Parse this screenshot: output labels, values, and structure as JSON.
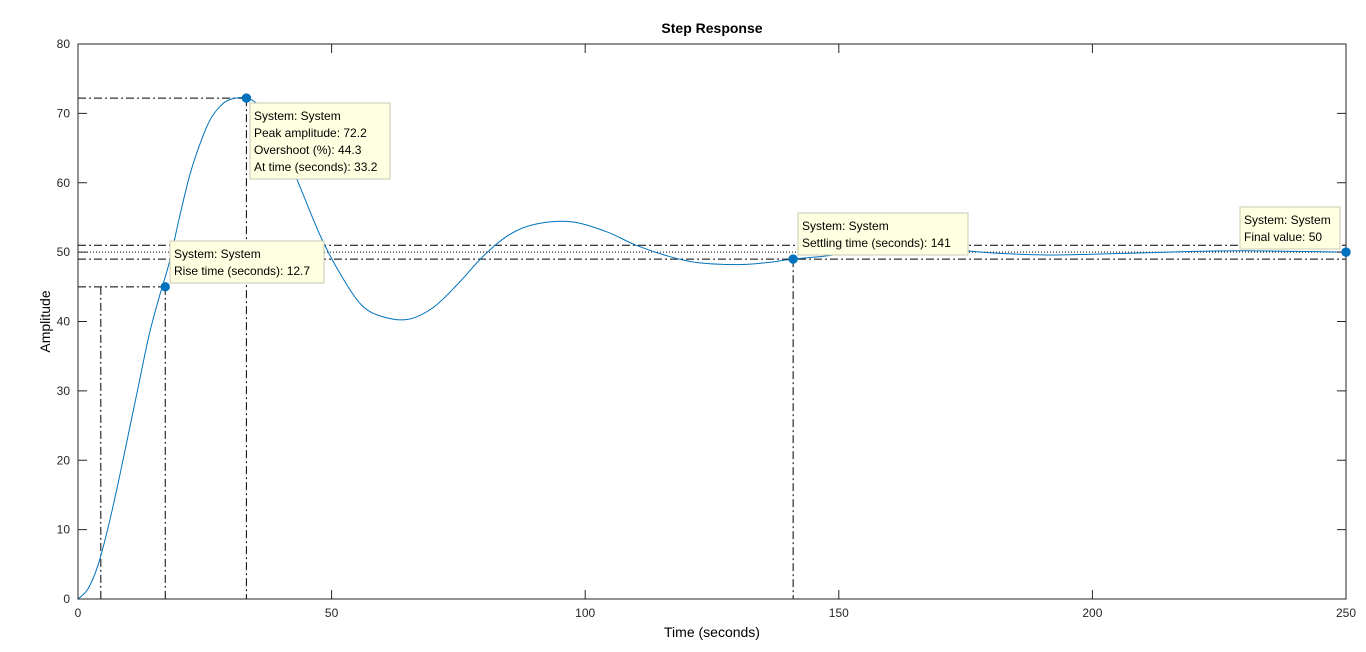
{
  "chart_data": {
    "type": "line",
    "title": "Step Response",
    "xlabel": "Time (seconds)",
    "ylabel": "Amplitude",
    "xlim": [
      0,
      250
    ],
    "ylim": [
      0,
      80
    ],
    "xticks": [
      0,
      50,
      100,
      150,
      200,
      250
    ],
    "yticks": [
      0,
      10,
      20,
      30,
      40,
      50,
      60,
      70,
      80
    ],
    "xtick_labels": [
      "0",
      "50",
      "100",
      "150",
      "200",
      "250"
    ],
    "ytick_labels": [
      "0",
      "10",
      "20",
      "30",
      "40",
      "50",
      "60",
      "70",
      "80"
    ],
    "grid": false,
    "series": [
      {
        "name": "System",
        "color": "#0072bd",
        "x": [
          0,
          2,
          4,
          6,
          8,
          10,
          12,
          14,
          16,
          18,
          20,
          22,
          24,
          26,
          28,
          30,
          33.2,
          36,
          40,
          44,
          48,
          52,
          56,
          60,
          65,
          70,
          75,
          80,
          85,
          90,
          97,
          104,
          110,
          116,
          122,
          130,
          136,
          141,
          148,
          155,
          162,
          170,
          180,
          190,
          200,
          210,
          220,
          230,
          240,
          250
        ],
        "values": [
          0,
          1.5,
          5,
          10.5,
          17,
          24,
          31,
          38,
          43.5,
          48.5,
          55,
          61,
          65.5,
          69,
          71,
          72,
          72.2,
          70.8,
          66,
          59,
          52,
          46.5,
          42.3,
          40.7,
          40.3,
          42,
          45.5,
          49.5,
          52.5,
          54,
          54.4,
          53,
          51,
          49.5,
          48.5,
          48.2,
          48.5,
          49,
          49.5,
          50.3,
          50.7,
          50.5,
          49.9,
          49.6,
          49.7,
          49.9,
          50.1,
          50.2,
          50.1,
          50
        ]
      }
    ],
    "reference_lines": {
      "final_value": 50,
      "settling_band_upper": 51,
      "settling_band_lower": 49,
      "rise_lower_time": 4.5,
      "rise_upper_value": 45
    },
    "markers": [
      {
        "name": "rise-time",
        "x": 17.2,
        "y": 45,
        "lines": [
          "System: System",
          "Rise time (seconds): 12.7"
        ]
      },
      {
        "name": "peak",
        "x": 33.2,
        "y": 72.2,
        "lines": [
          "System: System",
          "Peak amplitude: 72.2",
          "Overshoot (%): 44.3",
          "At time (seconds): 33.2"
        ]
      },
      {
        "name": "settling-time",
        "x": 141,
        "y": 49,
        "lines": [
          "System: System",
          "Settling time (seconds): 141"
        ]
      },
      {
        "name": "final-value",
        "x": 250,
        "y": 50,
        "lines": [
          "System: System",
          "Final value: 50"
        ]
      }
    ]
  }
}
